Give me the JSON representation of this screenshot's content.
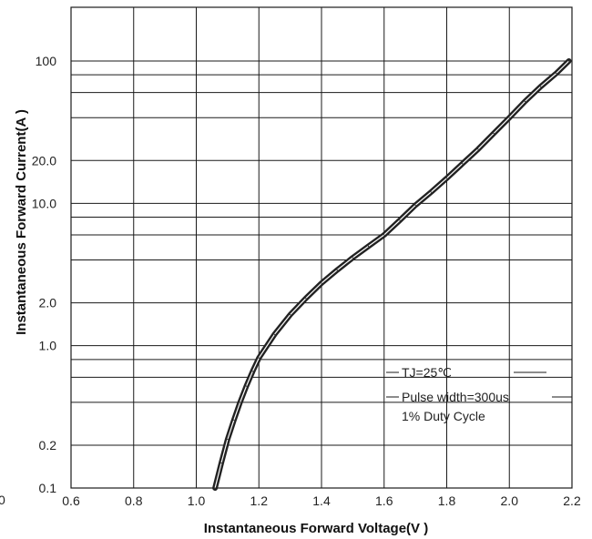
{
  "chart_data": {
    "type": "line",
    "xlabel": "Instantaneous Forward Voltage(V  )",
    "ylabel": "Instantaneous Forward Current(A )",
    "x_ticks": [
      {
        "value": 0.6,
        "label": "0.6"
      },
      {
        "value": 0.8,
        "label": "0.8"
      },
      {
        "value": 1.0,
        "label": "1.0"
      },
      {
        "value": 1.2,
        "label": "1.2"
      },
      {
        "value": 1.4,
        "label": "1.4"
      },
      {
        "value": 1.6,
        "label": "1.6"
      },
      {
        "value": 1.8,
        "label": "1.8"
      },
      {
        "value": 2.0,
        "label": "2.0"
      },
      {
        "value": 2.2,
        "label": "2.2"
      }
    ],
    "y_ticks": [
      {
        "value": 0.1,
        "label": "0.1"
      },
      {
        "value": 0.2,
        "label": "0.2"
      },
      {
        "value": 1.0,
        "label": "1.0"
      },
      {
        "value": 2.0,
        "label": "2.0"
      },
      {
        "value": 10.0,
        "label": "10.0"
      },
      {
        "value": 20.0,
        "label": "20.0"
      },
      {
        "value": 100,
        "label": "100"
      }
    ],
    "stray_label": "0",
    "xlim": [
      0.6,
      2.2
    ],
    "ylim": [
      0.1,
      300
    ],
    "y_scale": "log",
    "y_gridlines": [
      0.1,
      0.2,
      0.4,
      0.6,
      0.8,
      1.0,
      2.0,
      4.0,
      6.0,
      8.0,
      10.0,
      20.0,
      40.0,
      60.0,
      80.0,
      100
    ],
    "grid": true,
    "annotation": [
      "TJ=25℃",
      "Pulse width=300us",
      "1% Duty Cycle"
    ],
    "series": [
      {
        "x": [
          1.06,
          1.08,
          1.1,
          1.12,
          1.14,
          1.16,
          1.18,
          1.2,
          1.25,
          1.3,
          1.35,
          1.4,
          1.45,
          1.5,
          1.55,
          1.6,
          1.65,
          1.7,
          1.75,
          1.8,
          1.85,
          1.9,
          1.95,
          2.0,
          2.05,
          2.1,
          2.15,
          2.19
        ],
        "y": [
          0.1,
          0.15,
          0.22,
          0.3,
          0.4,
          0.52,
          0.66,
          0.82,
          1.2,
          1.65,
          2.15,
          2.75,
          3.4,
          4.15,
          5.0,
          6.0,
          7.6,
          9.7,
          12.0,
          15.0,
          19.0,
          24.0,
          31.0,
          40.0,
          52.0,
          66.0,
          82.0,
          100
        ]
      }
    ]
  }
}
